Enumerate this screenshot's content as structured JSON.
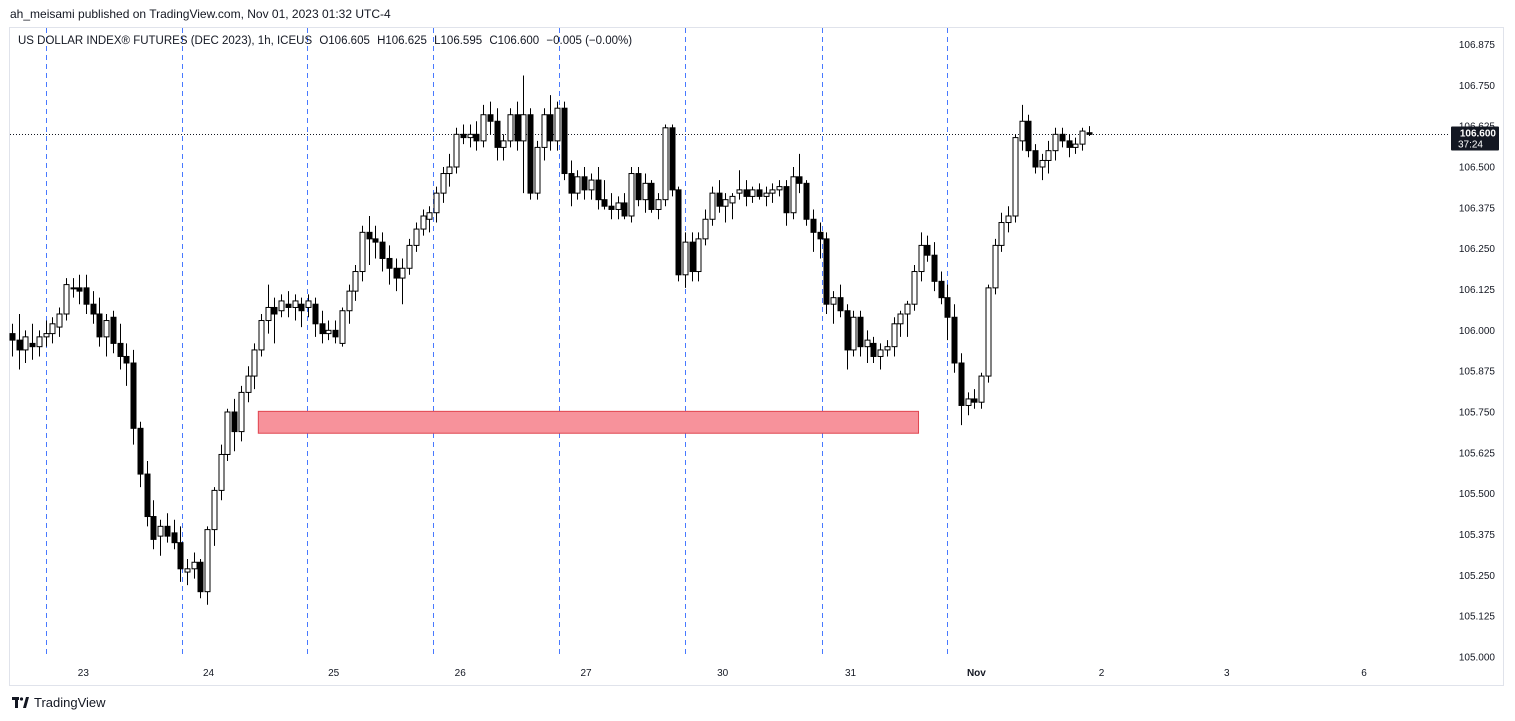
{
  "header": {
    "publish_line": "ah_meisami published on TradingView.com, Nov 01, 2023 01:32 UTC-4"
  },
  "legend": {
    "symbol": "US DOLLAR INDEX® FUTURES (DEC 2023), 1h, ICEUS",
    "open": "O106.605",
    "high": "H106.625",
    "low": "L106.595",
    "close": "C106.600",
    "change": "−0.005 (−0.00%)"
  },
  "footer": {
    "brand": "TradingView"
  },
  "colors": {
    "up_fill": "#ffffff",
    "down_fill": "#000000",
    "wick": "#000000",
    "zone_fill": "#f7929b",
    "zone_border": "#e0454f",
    "session_line": "#2962ff",
    "price_tag_bg": "#131722"
  },
  "chart_data": {
    "type": "candlestick",
    "title": "US DOLLAR INDEX® FUTURES (DEC 2023), 1h, ICEUS",
    "ylim": [
      105.0,
      106.95
    ],
    "y_ticks": [
      "106.875",
      "106.750",
      "106.625",
      "106.500",
      "106.375",
      "106.250",
      "106.125",
      "106.000",
      "105.875",
      "105.750",
      "105.625",
      "105.500",
      "105.375",
      "105.250",
      "105.125",
      "105.000"
    ],
    "x_ticks": [
      {
        "label": "23",
        "bar": 10.6
      },
      {
        "label": "24",
        "bar": 29.2
      },
      {
        "label": "25",
        "bar": 47.8
      },
      {
        "label": "26",
        "bar": 66.6
      },
      {
        "label": "27",
        "bar": 85.3
      },
      {
        "label": "30",
        "bar": 105.6
      },
      {
        "label": "31",
        "bar": 124.6
      },
      {
        "label": "Nov",
        "bar": 143.3
      },
      {
        "label": "2",
        "bar": 161.9
      },
      {
        "label": "3",
        "bar": 180.5
      },
      {
        "label": "6",
        "bar": 200.9
      }
    ],
    "session_bars": [
      5.1,
      25.3,
      43.9,
      62.6,
      81.3,
      100.0,
      120.3,
      138.9
    ],
    "current_price": {
      "value": 106.6,
      "label": "106.600",
      "countdown": "37:24"
    },
    "demand_zone": {
      "low": 105.685,
      "high": 105.752,
      "start_bar": 36.6,
      "end_bar": 134.7
    },
    "ohlc": [
      [
        105.99,
        106.02,
        105.92,
        105.97
      ],
      [
        105.97,
        106.05,
        105.88,
        105.94
      ],
      [
        105.94,
        106.0,
        105.9,
        105.98
      ],
      [
        105.96,
        106.02,
        105.91,
        105.95
      ],
      [
        105.95,
        106.0,
        105.92,
        105.98
      ],
      [
        105.98,
        106.03,
        105.95,
        105.99
      ],
      [
        105.99,
        106.04,
        105.96,
        106.02
      ],
      [
        106.01,
        106.07,
        105.98,
        106.05
      ],
      [
        106.05,
        106.16,
        106.03,
        106.14
      ],
      [
        106.13,
        106.16,
        106.1,
        106.13
      ],
      [
        106.13,
        106.17,
        106.08,
        106.12
      ],
      [
        106.13,
        106.17,
        106.05,
        106.08
      ],
      [
        106.08,
        106.12,
        106.02,
        106.05
      ],
      [
        106.05,
        106.1,
        105.95,
        105.98
      ],
      [
        105.98,
        106.05,
        105.92,
        106.03
      ],
      [
        106.04,
        106.06,
        105.93,
        105.96
      ],
      [
        105.96,
        106.02,
        105.88,
        105.92
      ],
      [
        105.92,
        105.96,
        105.83,
        105.9
      ],
      [
        105.9,
        105.94,
        105.65,
        105.7
      ],
      [
        105.7,
        105.72,
        105.52,
        105.56
      ],
      [
        105.56,
        105.6,
        105.4,
        105.43
      ],
      [
        105.43,
        105.48,
        105.33,
        105.36
      ],
      [
        105.37,
        105.42,
        105.31,
        105.4
      ],
      [
        105.4,
        105.44,
        105.35,
        105.37
      ],
      [
        105.38,
        105.42,
        105.33,
        105.35
      ],
      [
        105.35,
        105.4,
        105.23,
        105.27
      ],
      [
        105.26,
        105.3,
        105.22,
        105.27
      ],
      [
        105.27,
        105.32,
        105.24,
        105.29
      ],
      [
        105.29,
        105.3,
        105.18,
        105.2
      ],
      [
        105.2,
        105.4,
        105.16,
        105.39
      ],
      [
        105.39,
        105.52,
        105.34,
        105.51
      ],
      [
        105.51,
        105.65,
        105.48,
        105.62
      ],
      [
        105.62,
        105.76,
        105.6,
        105.75
      ],
      [
        105.75,
        105.79,
        105.63,
        105.69
      ],
      [
        105.69,
        105.83,
        105.66,
        105.81
      ],
      [
        105.81,
        105.89,
        105.78,
        105.86
      ],
      [
        105.86,
        105.96,
        105.82,
        105.94
      ],
      [
        105.94,
        106.05,
        105.92,
        106.03
      ],
      [
        106.03,
        106.14,
        105.99,
        106.07
      ],
      [
        106.07,
        106.1,
        105.96,
        106.05
      ],
      [
        106.06,
        106.11,
        106.04,
        106.09
      ],
      [
        106.08,
        106.12,
        106.04,
        106.07
      ],
      [
        106.07,
        106.11,
        106.03,
        106.09
      ],
      [
        106.08,
        106.1,
        106.01,
        106.06
      ],
      [
        106.07,
        106.11,
        106.04,
        106.09
      ],
      [
        106.08,
        106.1,
        105.98,
        106.02
      ],
      [
        106.02,
        106.06,
        105.96,
        105.99
      ],
      [
        105.99,
        106.03,
        105.97,
        106.0
      ],
      [
        106.0,
        106.03,
        105.96,
        105.98
      ],
      [
        105.96,
        106.07,
        105.95,
        106.06
      ],
      [
        106.06,
        106.14,
        106.02,
        106.12
      ],
      [
        106.12,
        106.2,
        106.09,
        106.18
      ],
      [
        106.18,
        106.32,
        106.15,
        106.3
      ],
      [
        106.3,
        106.35,
        106.2,
        106.28
      ],
      [
        106.28,
        106.32,
        106.22,
        106.27
      ],
      [
        106.27,
        106.3,
        106.18,
        106.22
      ],
      [
        106.22,
        106.26,
        106.14,
        106.19
      ],
      [
        106.19,
        106.22,
        106.12,
        106.16
      ],
      [
        106.16,
        106.22,
        106.08,
        106.19
      ],
      [
        106.19,
        106.28,
        106.17,
        106.26
      ],
      [
        106.26,
        106.33,
        106.24,
        106.31
      ],
      [
        106.31,
        106.37,
        106.29,
        106.35
      ],
      [
        106.34,
        106.38,
        106.3,
        106.36
      ],
      [
        106.36,
        106.44,
        106.33,
        106.42
      ],
      [
        106.42,
        106.5,
        106.39,
        106.48
      ],
      [
        106.48,
        106.54,
        106.44,
        106.5
      ],
      [
        106.5,
        106.62,
        106.48,
        106.6
      ],
      [
        106.6,
        106.63,
        106.57,
        106.59
      ],
      [
        106.59,
        106.63,
        106.56,
        106.6
      ],
      [
        106.6,
        106.64,
        106.55,
        106.58
      ],
      [
        106.58,
        106.69,
        106.56,
        106.66
      ],
      [
        106.66,
        106.7,
        106.6,
        106.64
      ],
      [
        106.64,
        106.68,
        106.52,
        106.56
      ],
      [
        106.56,
        106.6,
        106.52,
        106.58
      ],
      [
        106.58,
        106.68,
        106.56,
        106.66
      ],
      [
        106.66,
        106.7,
        106.55,
        106.58
      ],
      [
        106.58,
        106.78,
        106.42,
        106.66
      ],
      [
        106.66,
        106.68,
        106.4,
        106.42
      ],
      [
        106.42,
        106.58,
        106.4,
        106.56
      ],
      [
        106.56,
        106.68,
        106.52,
        106.66
      ],
      [
        106.66,
        106.72,
        106.55,
        106.58
      ],
      [
        106.58,
        106.7,
        106.55,
        106.68
      ],
      [
        106.68,
        106.7,
        106.46,
        106.48
      ],
      [
        106.48,
        106.52,
        106.38,
        106.42
      ],
      [
        106.42,
        106.49,
        106.4,
        106.47
      ],
      [
        106.47,
        106.5,
        106.4,
        106.43
      ],
      [
        106.43,
        106.48,
        106.4,
        106.46
      ],
      [
        106.46,
        106.5,
        106.37,
        106.4
      ],
      [
        106.4,
        106.46,
        106.37,
        106.38
      ],
      [
        106.38,
        106.42,
        106.34,
        106.37
      ],
      [
        106.37,
        106.41,
        106.34,
        106.39
      ],
      [
        106.39,
        106.42,
        106.34,
        106.35
      ],
      [
        106.35,
        106.5,
        106.33,
        106.48
      ],
      [
        106.48,
        106.5,
        106.38,
        106.4
      ],
      [
        106.4,
        106.48,
        106.36,
        106.45
      ],
      [
        106.45,
        106.46,
        106.36,
        106.37
      ],
      [
        106.37,
        106.42,
        106.34,
        106.4
      ],
      [
        106.4,
        106.63,
        106.38,
        106.62
      ],
      [
        106.62,
        106.63,
        106.41,
        106.43
      ],
      [
        106.43,
        106.44,
        106.15,
        106.17
      ],
      [
        106.17,
        106.3,
        106.13,
        106.27
      ],
      [
        106.27,
        106.3,
        106.15,
        106.18
      ],
      [
        106.18,
        106.3,
        106.15,
        106.28
      ],
      [
        106.28,
        106.37,
        106.26,
        106.34
      ],
      [
        106.34,
        106.44,
        106.32,
        106.42
      ],
      [
        106.42,
        106.46,
        106.36,
        106.38
      ],
      [
        106.38,
        106.42,
        106.33,
        106.4
      ],
      [
        106.39,
        106.42,
        106.34,
        106.41
      ],
      [
        106.42,
        106.49,
        106.4,
        106.43
      ],
      [
        106.43,
        106.46,
        106.38,
        106.41
      ],
      [
        106.41,
        106.44,
        106.39,
        106.43
      ],
      [
        106.43,
        106.45,
        106.4,
        106.41
      ],
      [
        106.41,
        106.44,
        106.38,
        106.42
      ],
      [
        106.42,
        106.45,
        106.39,
        106.43
      ],
      [
        106.43,
        106.46,
        106.41,
        106.44
      ],
      [
        106.44,
        106.46,
        106.32,
        106.36
      ],
      [
        106.36,
        106.5,
        106.34,
        106.47
      ],
      [
        106.47,
        106.54,
        106.42,
        106.45
      ],
      [
        106.45,
        106.46,
        106.32,
        106.34
      ],
      [
        106.34,
        106.37,
        106.24,
        106.3
      ],
      [
        106.3,
        106.33,
        106.22,
        106.28
      ],
      [
        106.28,
        106.3,
        106.05,
        106.08
      ],
      [
        106.08,
        106.12,
        106.02,
        106.1
      ],
      [
        106.1,
        106.14,
        106.04,
        106.06
      ],
      [
        106.06,
        106.08,
        105.88,
        105.94
      ],
      [
        105.94,
        106.06,
        105.92,
        106.04
      ],
      [
        106.04,
        106.06,
        105.92,
        105.95
      ],
      [
        105.95,
        106.0,
        105.9,
        105.97
      ],
      [
        105.96,
        105.98,
        105.9,
        105.92
      ],
      [
        105.92,
        105.96,
        105.88,
        105.94
      ],
      [
        105.94,
        105.97,
        105.92,
        105.95
      ],
      [
        105.95,
        106.04,
        105.92,
        106.02
      ],
      [
        106.02,
        106.06,
        105.98,
        106.05
      ],
      [
        106.05,
        106.09,
        105.98,
        106.08
      ],
      [
        106.08,
        106.2,
        106.06,
        106.18
      ],
      [
        106.18,
        106.3,
        106.15,
        106.26
      ],
      [
        106.26,
        106.29,
        106.21,
        106.23
      ],
      [
        106.23,
        106.27,
        106.12,
        106.15
      ],
      [
        106.15,
        106.18,
        106.08,
        106.1
      ],
      [
        106.1,
        106.14,
        105.97,
        106.04
      ],
      [
        106.04,
        106.08,
        105.87,
        105.9
      ],
      [
        105.9,
        105.93,
        105.71,
        105.77
      ],
      [
        105.77,
        105.81,
        105.74,
        105.79
      ],
      [
        105.79,
        105.82,
        105.76,
        105.78
      ],
      [
        105.78,
        105.87,
        105.76,
        105.86
      ],
      [
        105.86,
        106.14,
        105.84,
        106.13
      ],
      [
        106.13,
        106.28,
        106.11,
        106.26
      ],
      [
        106.26,
        106.36,
        106.24,
        106.33
      ],
      [
        106.33,
        106.38,
        106.3,
        106.35
      ],
      [
        106.35,
        106.6,
        106.33,
        106.59
      ],
      [
        106.58,
        106.69,
        106.55,
        106.64
      ],
      [
        106.64,
        106.66,
        106.53,
        106.55
      ],
      [
        106.55,
        106.57,
        106.48,
        106.5
      ],
      [
        106.5,
        106.54,
        106.46,
        106.52
      ],
      [
        106.52,
        106.58,
        106.48,
        106.55
      ],
      [
        106.55,
        106.62,
        106.52,
        106.6
      ],
      [
        106.6,
        106.62,
        106.56,
        106.58
      ],
      [
        106.58,
        106.6,
        106.53,
        106.56
      ],
      [
        106.56,
        106.59,
        106.54,
        106.57
      ],
      [
        106.57,
        106.62,
        106.55,
        106.61
      ],
      [
        106.605,
        106.625,
        106.595,
        106.6
      ]
    ]
  }
}
